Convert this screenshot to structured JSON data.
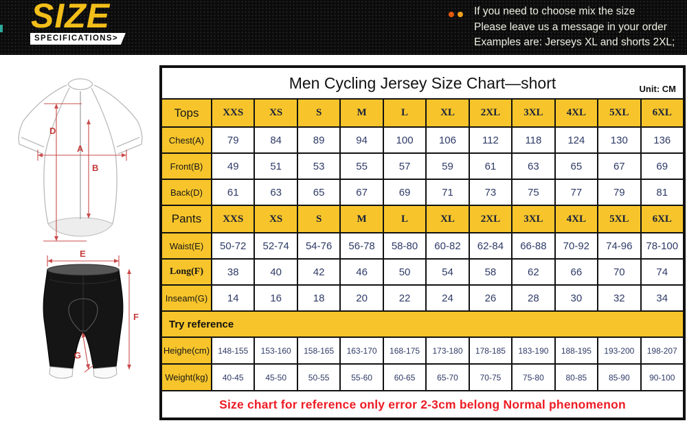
{
  "banner": {
    "title": "SIZE",
    "subtitle": "SPECIFICATIONS>",
    "note_lines": [
      "If you need to choose mix the size",
      "Please leave us a message in your order",
      "Examples are: Jerseys XL and shorts 2XL;"
    ],
    "colors": {
      "background": "#0b0b0b",
      "title_gold": "#F2BE19",
      "dot_red": "#E2590B",
      "dot_orange": "#EFA11C",
      "teal_mark": "#2BA99B"
    }
  },
  "table": {
    "unit_label": "Unit: CM",
    "colors": {
      "header_yellow": "#F7C52B",
      "grid_black": "#111111",
      "value_navy": "#2E3A66",
      "footnote_red": "#ED1C24"
    }
  },
  "diagrams": {
    "jersey": {
      "A": "A",
      "B": "B",
      "D": "D"
    },
    "shorts": {
      "E": "E",
      "F": "F",
      "G": "G"
    },
    "measure_line_red": "#C94B4B"
  },
  "chart_data": {
    "type": "table",
    "title": "Men Cycling Jersey Size Chart—short",
    "unit": "CM",
    "size_columns": [
      "XXS",
      "XS",
      "S",
      "M",
      "L",
      "XL",
      "2XL",
      "3XL",
      "4XL",
      "5XL",
      "6XL"
    ],
    "sections": [
      {
        "header": "Tops",
        "rows": [
          {
            "label": "Chest(A)",
            "values": [
              "79",
              "84",
              "89",
              "94",
              "100",
              "106",
              "112",
              "118",
              "124",
              "130",
              "136"
            ]
          },
          {
            "label": "Front(B)",
            "values": [
              "49",
              "51",
              "53",
              "55",
              "57",
              "59",
              "61",
              "63",
              "65",
              "67",
              "69"
            ]
          },
          {
            "label": "Back(D)",
            "values": [
              "61",
              "63",
              "65",
              "67",
              "69",
              "71",
              "73",
              "75",
              "77",
              "79",
              "81"
            ]
          }
        ]
      },
      {
        "header": "Pants",
        "rows": [
          {
            "label": "Waist(E)",
            "values": [
              "50-72",
              "52-74",
              "54-76",
              "56-78",
              "58-80",
              "60-82",
              "62-84",
              "66-88",
              "70-92",
              "74-96",
              "78-100"
            ]
          },
          {
            "label": "Long(F)",
            "serif": true,
            "values": [
              "38",
              "40",
              "42",
              "46",
              "50",
              "54",
              "58",
              "62",
              "66",
              "70",
              "74"
            ]
          },
          {
            "label": "Inseam(G)",
            "values": [
              "14",
              "16",
              "18",
              "20",
              "22",
              "24",
              "26",
              "28",
              "30",
              "32",
              "34"
            ]
          }
        ]
      },
      {
        "header": "Try reference",
        "full_width_header": true,
        "rows": [
          {
            "label": "Heighe(cm)",
            "small": true,
            "values": [
              "148-155",
              "153-160",
              "158-165",
              "163-170",
              "168-175",
              "173-180",
              "178-185",
              "183-190",
              "188-195",
              "193-200",
              "198-207"
            ]
          },
          {
            "label": "Weight(kg)",
            "small": true,
            "values": [
              "40-45",
              "45-50",
              "50-55",
              "55-60",
              "60-65",
              "65-70",
              "70-75",
              "75-80",
              "80-85",
              "85-90",
              "90-100"
            ]
          }
        ]
      }
    ],
    "footnote": "Size chart for reference only error 2-3cm belong Normal phenomenon"
  }
}
